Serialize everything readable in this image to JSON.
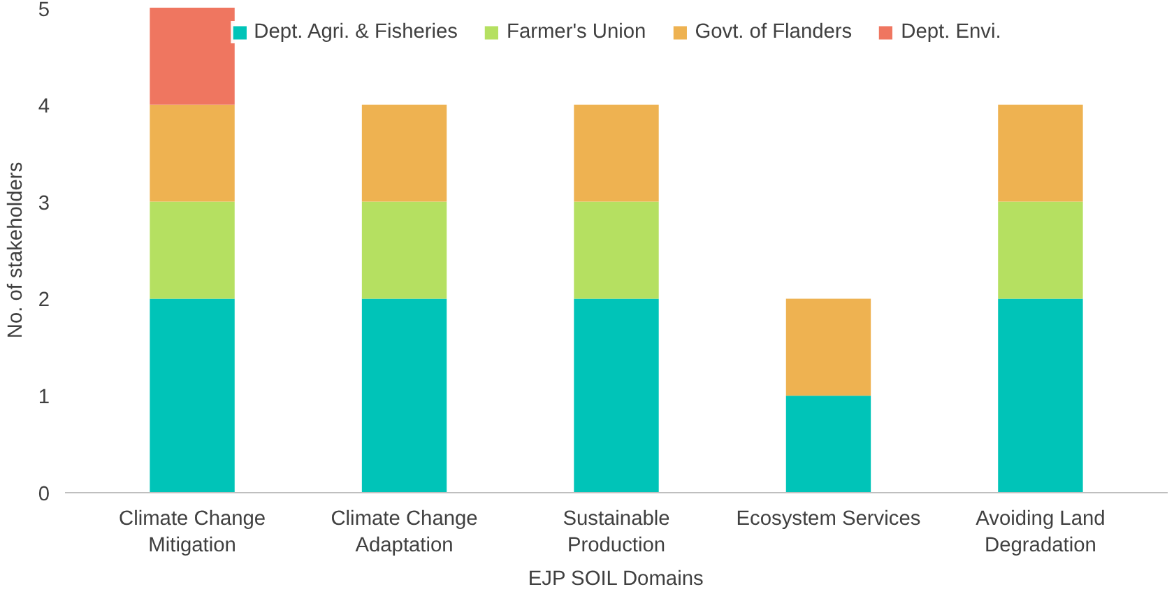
{
  "chart_data": {
    "type": "bar",
    "stacked": true,
    "xlabel": "EJP SOIL Domains",
    "ylabel": "No. of stakeholders",
    "categories": [
      "Climate Change\nMitigation",
      "Climate Change\nAdaptation",
      "Sustainable\nProduction",
      "Ecosystem Services",
      "Avoiding Land\nDegradation"
    ],
    "series": [
      {
        "name": "Dept. Agri. & Fisheries",
        "color": "#00c4b8",
        "values": [
          2,
          2,
          2,
          1,
          2
        ]
      },
      {
        "name": "Farmer's Union",
        "color": "#b5e061",
        "values": [
          1,
          1,
          1,
          0,
          1
        ]
      },
      {
        "name": "Govt. of Flanders",
        "color": "#eeb251",
        "values": [
          1,
          1,
          1,
          1,
          1
        ]
      },
      {
        "name": "Dept. Envi.",
        "color": "#ef7660",
        "values": [
          1,
          0,
          0,
          0,
          0
        ]
      }
    ],
    "ylim": [
      0,
      5
    ],
    "yticks": [
      0,
      1,
      2,
      3,
      4,
      5
    ],
    "grid": false,
    "legend": "top"
  }
}
